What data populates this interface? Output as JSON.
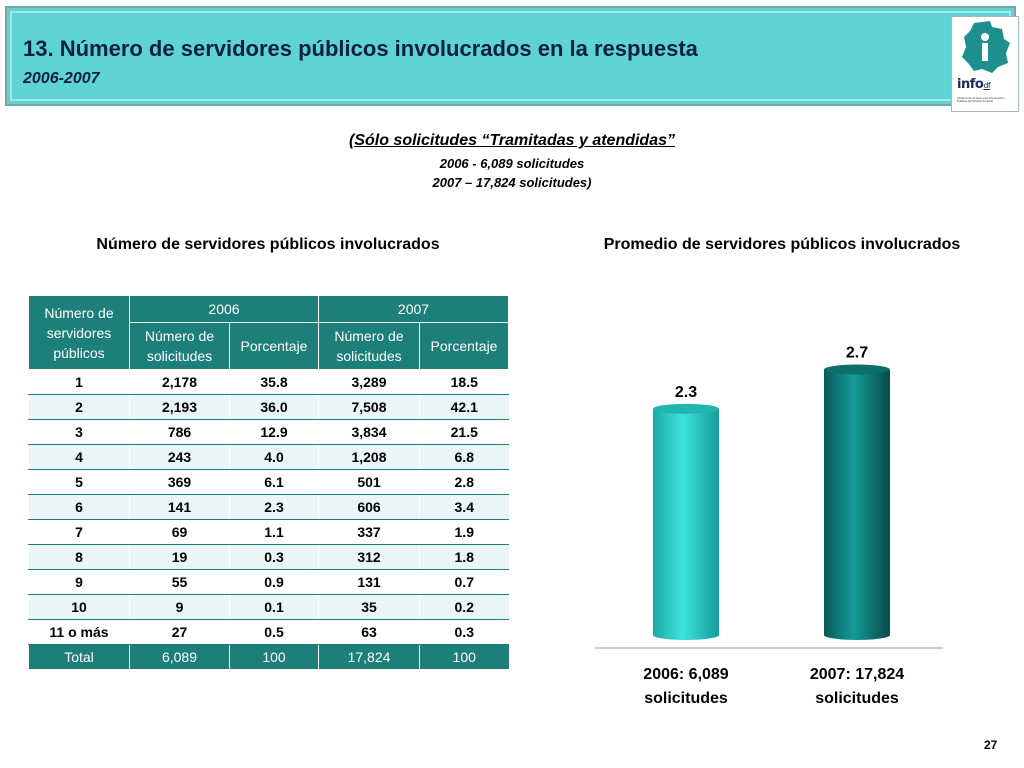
{
  "header": {
    "title": "13. Número de servidores públicos involucrados en la respuesta",
    "subtitle": "2006-2007",
    "logo_text": "info",
    "logo_text_suffix": "df",
    "logo_subtext": "Instituto de Acceso a la Información Pública del Distrito Federal"
  },
  "intro": {
    "title": "(Sólo solicitudes “Tramitadas y atendidas”",
    "line1": "2006 - 6,089 solicitudes",
    "line2": "2007 – 17,824 solicitudes)"
  },
  "table_heading": "Número de servidores públicos involucrados",
  "chart_heading": "Promedio de servidores públicos involucrados",
  "table": {
    "col_first": "Número de servidores públicos",
    "year_2006": "2006",
    "year_2007": "2007",
    "sub_headers": [
      "Número de solicitudes",
      "Porcentaje",
      "Número de solicitudes",
      "Porcentaje"
    ],
    "rows": [
      [
        "1",
        "2,178",
        "35.8",
        "3,289",
        "18.5"
      ],
      [
        "2",
        "2,193",
        "36.0",
        "7,508",
        "42.1"
      ],
      [
        "3",
        "786",
        "12.9",
        "3,834",
        "21.5"
      ],
      [
        "4",
        "243",
        "4.0",
        "1,208",
        "6.8"
      ],
      [
        "5",
        "369",
        "6.1",
        "501",
        "2.8"
      ],
      [
        "6",
        "141",
        "2.3",
        "606",
        "3.4"
      ],
      [
        "7",
        "69",
        "1.1",
        "337",
        "1.9"
      ],
      [
        "8",
        "19",
        "0.3",
        "312",
        "1.8"
      ],
      [
        "9",
        "55",
        "0.9",
        "131",
        "0.7"
      ],
      [
        "10",
        "9",
        "0.1",
        "35",
        "0.2"
      ],
      [
        "11 o más",
        "27",
        "0.5",
        "63",
        "0.3"
      ]
    ],
    "total": [
      "Total",
      "6,089",
      "100",
      "17,824",
      "100"
    ]
  },
  "chart_data": {
    "type": "bar",
    "title": "Promedio de servidores públicos involucrados",
    "categories": [
      [
        "2006: 6,089",
        "solicitudes"
      ],
      [
        "2007: 17,824",
        "solicitudes"
      ]
    ],
    "values": [
      2.3,
      2.7
    ],
    "value_labels": [
      "2.3",
      "2.7"
    ],
    "colors": [
      "#2fd3cf",
      "#0f7f7c"
    ],
    "ylim": [
      0,
      3
    ],
    "grid": false,
    "legend": "none"
  },
  "page_number": "27",
  "colors": {
    "header_bg": "#5dd3d4",
    "table_header": "#1d7f7a",
    "title_text": "#0f1f40"
  }
}
